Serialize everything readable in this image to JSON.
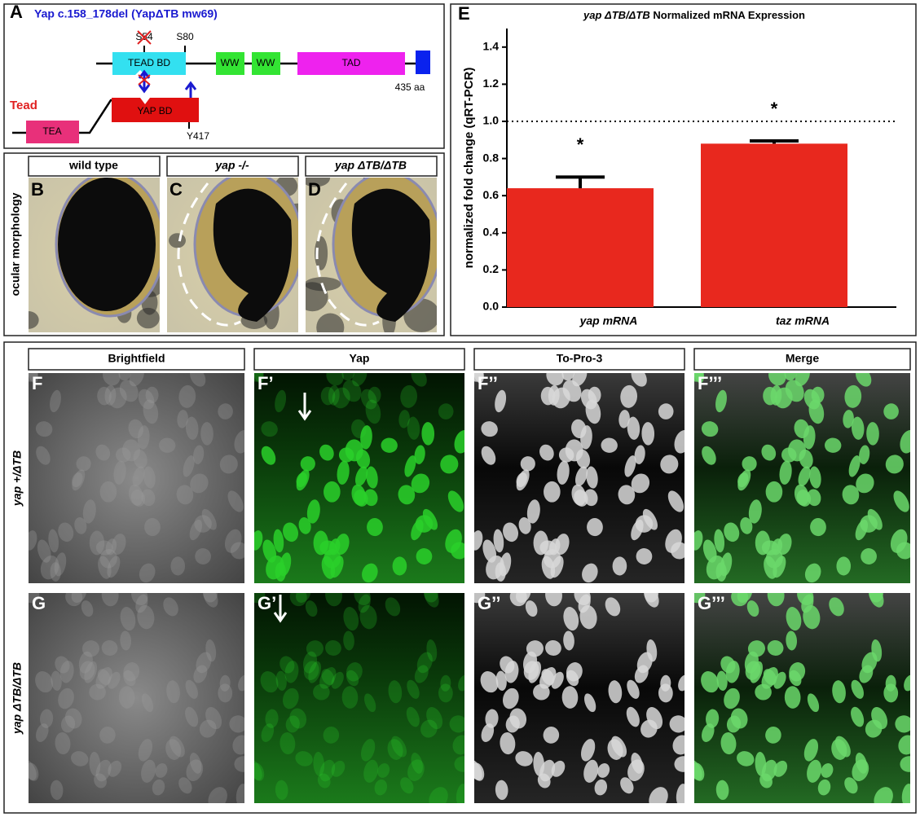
{
  "panel_a": {
    "letter": "A",
    "title": "Yap c.158_178del (YapΔTB mw69)",
    "yap_domains": [
      "TEAD BD",
      "WW",
      "WW",
      "TAD"
    ],
    "sites": [
      "S54",
      "S80",
      "Y417"
    ],
    "length": "435 aa",
    "tead": {
      "name": "Tead",
      "domains": [
        "TEA",
        "YAP BD"
      ]
    }
  },
  "panel_bcd": {
    "row_label": "ocular morphology",
    "panels": [
      {
        "letter": "B",
        "header": "wild type"
      },
      {
        "letter": "C",
        "header": "yap -/-"
      },
      {
        "letter": "D",
        "header": "yap ΔTB/ΔTB"
      }
    ]
  },
  "chart_data": {
    "type": "bar",
    "letter": "E",
    "title": [
      "yap ΔTB/ΔTB",
      "Normalized mRNA Expression"
    ],
    "ylabel": "normalized fold change (qRT-PCR)",
    "categories": [
      "yap mRNA",
      "taz mRNA"
    ],
    "values": [
      0.64,
      0.88
    ],
    "errors": [
      0.06,
      0.015
    ],
    "annotations": [
      "*",
      "*"
    ],
    "color": "#e8281e",
    "reference_line": 1.0,
    "ylim": [
      0,
      1.5
    ],
    "yticks": [
      {
        "value": 0,
        "label": "0.0"
      },
      0.2,
      0.4,
      0.6,
      0.8,
      {
        "value": 1,
        "label": "1.0"
      },
      1.2,
      1.4
    ]
  },
  "panel_fg": {
    "columns": [
      "Brightfield",
      "Yap",
      "To-Pro-3",
      "Merge"
    ],
    "rows": [
      {
        "label": "yap +/ΔTB",
        "letters": [
          "F",
          "F’",
          "F’’",
          "F’’’"
        ]
      },
      {
        "label": "yap ΔTB/ΔTB",
        "letters": [
          "G",
          "G’",
          "G’’",
          "G’’’"
        ]
      }
    ]
  }
}
